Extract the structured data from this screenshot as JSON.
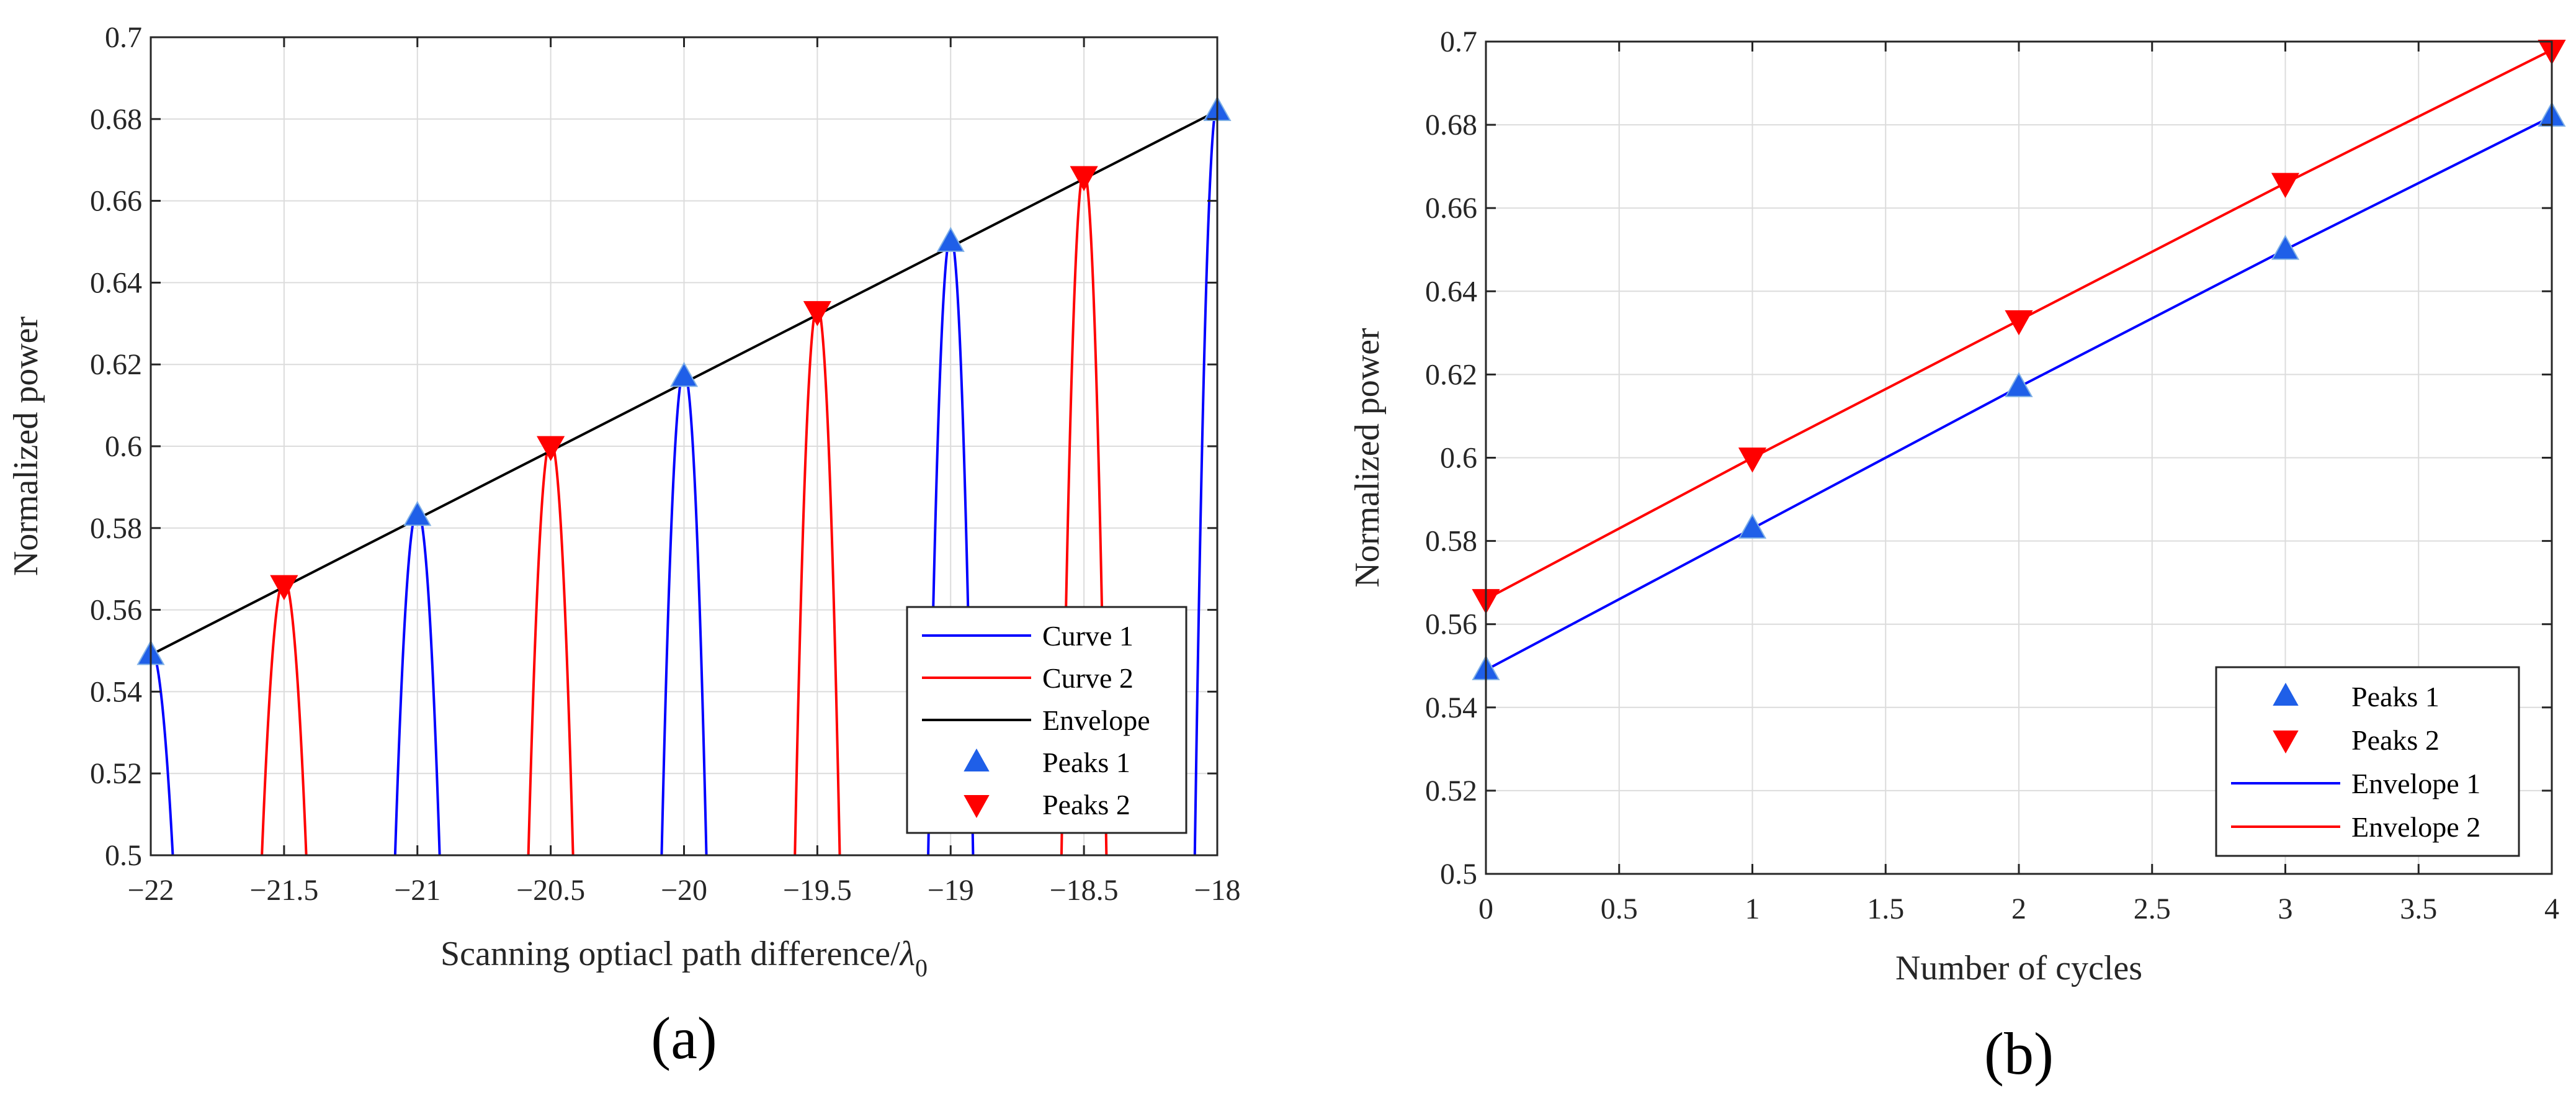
{
  "colors": {
    "blue": "#0000ff",
    "red": "#ff0000",
    "black": "#000000",
    "grid": "#dcdcdc",
    "axis": "#262626",
    "marker_blue": "#1f5fe8",
    "marker_red": "#ff0000"
  },
  "chart_data": [
    {
      "id": "a",
      "type": "line",
      "caption": "(a)",
      "xlabel": "Scanning optiacl path difference/",
      "xlabel_symbol": "λ",
      "xlabel_sub": "0",
      "ylabel": "Normalized power",
      "xlim": [
        -22,
        -18
      ],
      "ylim": [
        0.5,
        0.7
      ],
      "xticks": [
        -22,
        -21.5,
        -21,
        -20.5,
        -20,
        -19.5,
        -19,
        -18.5,
        -18
      ],
      "xtick_labels": [
        "−22",
        "−21.5",
        "−21",
        "−20.5",
        "−20",
        "−19.5",
        "−19",
        "−18.5",
        "−18"
      ],
      "yticks": [
        0.5,
        0.52,
        0.54,
        0.56,
        0.58,
        0.6,
        0.62,
        0.64,
        0.66,
        0.68,
        0.7
      ],
      "ytick_labels": [
        "0.5",
        "0.52",
        "0.54",
        "0.56",
        "0.58",
        "0.6",
        "0.62",
        "0.64",
        "0.66",
        "0.68",
        "0.7"
      ],
      "grid": true,
      "legend_position": "lower-right",
      "lobe_halfwidth": 0.085,
      "series": [
        {
          "name": "Curve 1",
          "kind": "lobes",
          "color": "blue",
          "centers": [
            -22,
            -21,
            -20,
            -19,
            -18
          ],
          "peaks": [
            0.549,
            0.583,
            0.617,
            0.65,
            0.682
          ]
        },
        {
          "name": "Curve 2",
          "kind": "lobes",
          "color": "red",
          "centers": [
            -21.5,
            -20.5,
            -19.5,
            -18.5
          ],
          "peaks": [
            0.566,
            0.6,
            0.633,
            0.666
          ]
        },
        {
          "name": "Envelope",
          "kind": "line",
          "color": "black",
          "x": [
            -22,
            -18
          ],
          "y": [
            0.549,
            0.682
          ]
        },
        {
          "name": "Peaks 1",
          "kind": "marker-up",
          "color": "marker_blue",
          "x": [
            -22,
            -21,
            -20,
            -19,
            -18
          ],
          "y": [
            0.549,
            0.583,
            0.617,
            0.65,
            0.682
          ]
        },
        {
          "name": "Peaks 2",
          "kind": "marker-down",
          "color": "marker_red",
          "x": [
            -21.5,
            -20.5,
            -19.5,
            -18.5
          ],
          "y": [
            0.566,
            0.6,
            0.633,
            0.666
          ]
        }
      ],
      "legend": [
        "Curve 1",
        "Curve 2",
        "Envelope",
        "Peaks 1",
        "Peaks 2"
      ]
    },
    {
      "id": "b",
      "type": "line",
      "caption": "(b)",
      "xlabel": "Number of cycles",
      "ylabel": "Normalized power",
      "xlim": [
        0,
        4
      ],
      "ylim": [
        0.5,
        0.7
      ],
      "xticks": [
        0,
        0.5,
        1,
        1.5,
        2,
        2.5,
        3,
        3.5,
        4
      ],
      "xtick_labels": [
        "0",
        "0.5",
        "1",
        "1.5",
        "2",
        "2.5",
        "3",
        "3.5",
        "4"
      ],
      "yticks": [
        0.5,
        0.52,
        0.54,
        0.56,
        0.58,
        0.6,
        0.62,
        0.64,
        0.66,
        0.68,
        0.7
      ],
      "ytick_labels": [
        "0.5",
        "0.52",
        "0.54",
        "0.56",
        "0.58",
        "0.6",
        "0.62",
        "0.64",
        "0.66",
        "0.68",
        "0.7"
      ],
      "grid": true,
      "legend_position": "lower-right",
      "series": [
        {
          "name": "Peaks 1",
          "kind": "marker-up",
          "color": "marker_blue",
          "x": [
            0,
            1,
            2,
            3,
            4
          ],
          "y": [
            0.549,
            0.583,
            0.617,
            0.65,
            0.682
          ]
        },
        {
          "name": "Peaks 2",
          "kind": "marker-down",
          "color": "marker_red",
          "x": [
            0,
            1,
            2,
            3,
            4
          ],
          "y": [
            0.566,
            0.6,
            0.633,
            0.666,
            0.698
          ]
        },
        {
          "name": "Envelope 1",
          "kind": "line",
          "color": "blue",
          "x": [
            0,
            1,
            2,
            3,
            4
          ],
          "y": [
            0.549,
            0.583,
            0.617,
            0.65,
            0.682
          ]
        },
        {
          "name": "Envelope 2",
          "kind": "line",
          "color": "red",
          "x": [
            0,
            1,
            2,
            3,
            4
          ],
          "y": [
            0.566,
            0.6,
            0.633,
            0.666,
            0.698
          ]
        }
      ],
      "legend": [
        "Peaks 1",
        "Peaks 2",
        "Envelope 1",
        "Envelope 2"
      ]
    }
  ]
}
